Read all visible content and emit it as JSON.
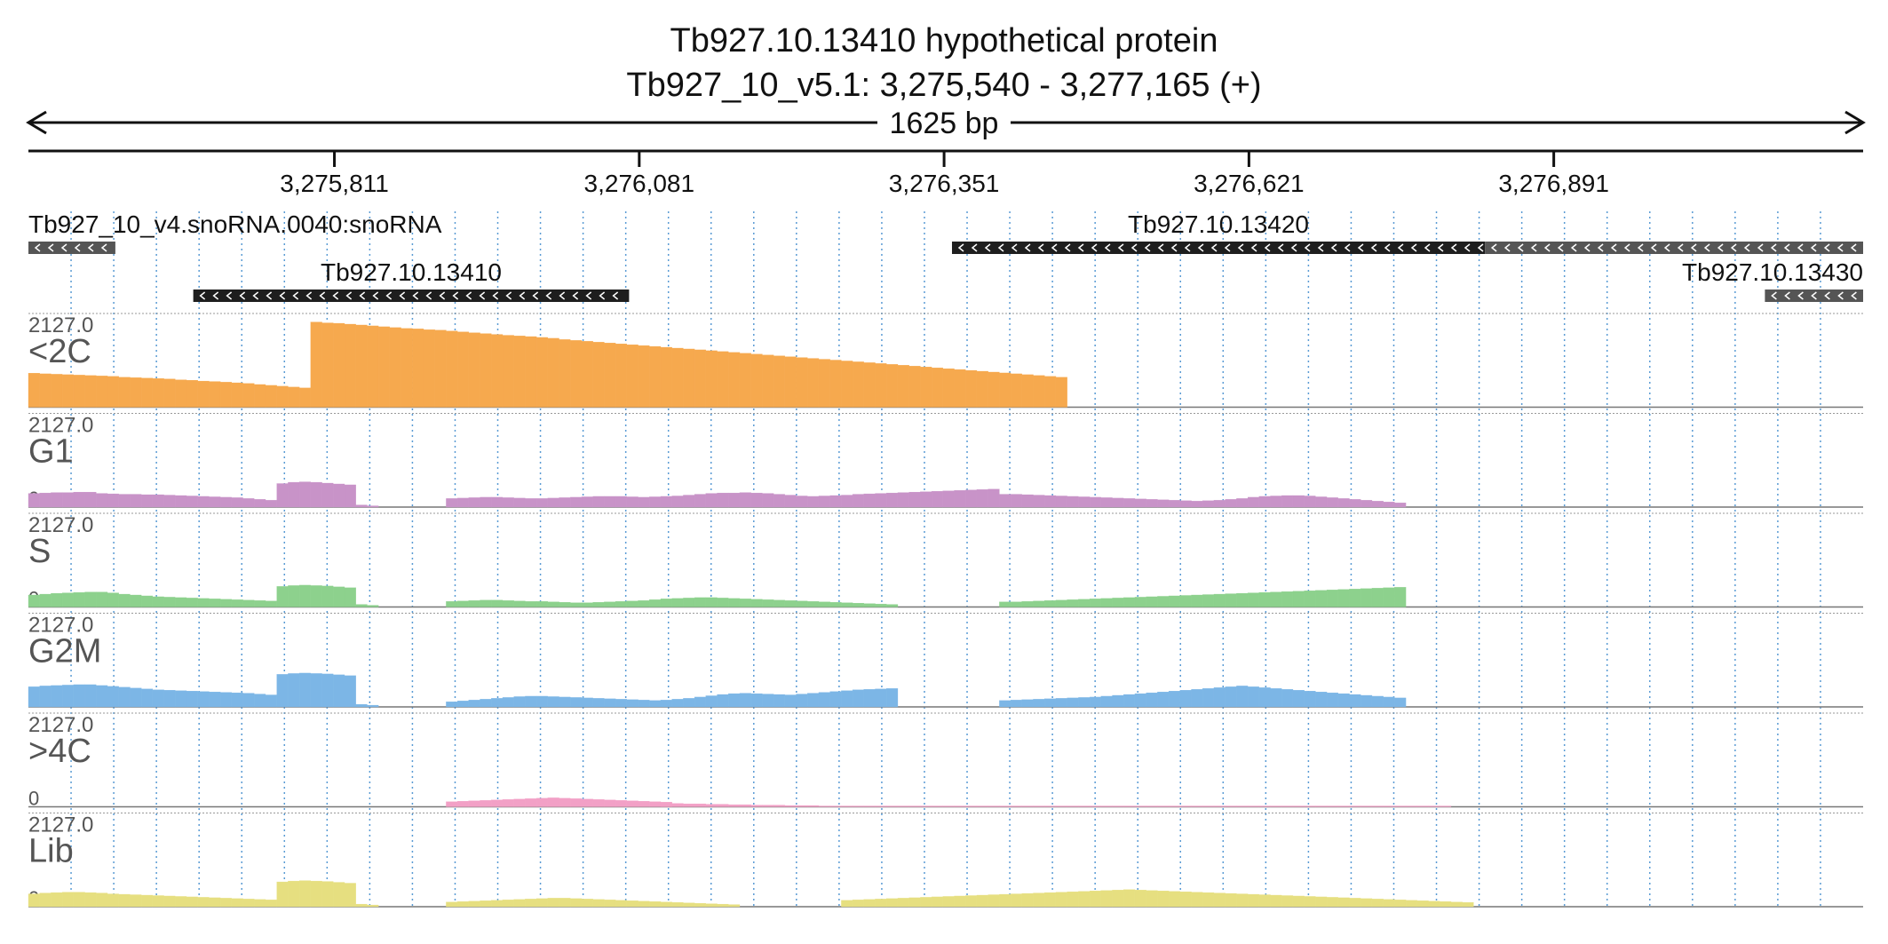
{
  "header": {
    "title": "Tb927.10.13410  hypothetical protein",
    "location": "Tb927_10_v5.1: 3,275,540 - 3,277,165 (+)",
    "span_label": "1625 bp"
  },
  "chart_data": {
    "type": "bar",
    "x_range": [
      3275540,
      3277165
    ],
    "ticks": [
      {
        "pos": 3275811,
        "label": "3,275,811"
      },
      {
        "pos": 3276081,
        "label": "3,276,081"
      },
      {
        "pos": 3276351,
        "label": "3,276,351"
      },
      {
        "pos": 3276621,
        "label": "3,276,621"
      },
      {
        "pos": 3276891,
        "label": "3,276,891"
      }
    ],
    "grid": true,
    "genes": [
      {
        "name": "Tb927_10_v4.snoRNA.0040:snoRNA",
        "start": 3275540,
        "end": 3275617,
        "strand": "-",
        "row": 0,
        "label_side": "left",
        "color": "#555555"
      },
      {
        "name": "Tb927.10.13420",
        "start": 3276358,
        "end": 3276830,
        "strand": "-",
        "row": 0,
        "label_side": "center",
        "color": "#1e1e1e"
      },
      {
        "name": "",
        "start": 3276830,
        "end": 3277165,
        "strand": "-",
        "row": 0,
        "label_side": "none",
        "color": "#555555"
      },
      {
        "name": "Tb927.10.13410",
        "start": 3275686,
        "end": 3276072,
        "strand": "-",
        "row": 1,
        "label_side": "center",
        "color": "#1e1e1e"
      },
      {
        "name": "Tb927.10.13430",
        "start": 3277078,
        "end": 3277165,
        "strand": "-",
        "row": 1,
        "label_side": "right",
        "color": "#555555"
      }
    ],
    "bin_size": 10,
    "tracks": [
      {
        "name": "<2C",
        "max": 2127.0,
        "min": 0,
        "color": "#f6a94e",
        "segments": [
          {
            "start": 3275540,
            "values": [
              795,
              780,
              770,
              760,
              750,
              740,
              730,
              720,
              700,
              690,
              680,
              670,
              660,
              640,
              630,
              610,
              600,
              585,
              570,
              555,
              530,
              510,
              490,
              470,
              450,
              1990,
              1970,
              1960,
              1940,
              1920,
              1900,
              1880,
              1860,
              1840,
              1830,
              1810,
              1800,
              1780,
              1760,
              1740,
              1720,
              1700,
              1680,
              1665,
              1650,
              1630,
              1610,
              1580,
              1560,
              1540,
              1520,
              1500,
              1480,
              1460,
              1440,
              1420,
              1400,
              1380,
              1360,
              1340,
              1320,
              1300,
              1280,
              1260,
              1240,
              1220,
              1200,
              1180,
              1160,
              1140,
              1120,
              1100,
              1080,
              1060,
              1040,
              1020,
              1000,
              980,
              960,
              940,
              920,
              900,
              880,
              860,
              840,
              820,
              800,
              780,
              760,
              740,
              720,
              700
            ]
          }
        ]
      },
      {
        "name": "G1",
        "max": 2127.0,
        "min": 0,
        "color": "#c893c8",
        "segments": [
          {
            "start": 3275540,
            "values": [
              320,
              330,
              340,
              340,
              350,
              350,
              320,
              310,
              300,
              300,
              290,
              290,
              280,
              270,
              260,
              250,
              240,
              230,
              220,
              200,
              180,
              160,
              550,
              580,
              590,
              580,
              560,
              540,
              520,
              50,
              30
            ]
          },
          {
            "start": 3275910,
            "values": [
              200,
              210,
              220,
              230,
              230,
              220,
              210,
              200,
              200,
              210,
              220,
              230,
              240,
              250,
              250,
              250,
              240,
              230,
              240,
              250,
              260,
              280,
              300,
              320,
              330,
              330,
              340,
              330,
              320,
              300,
              280,
              260,
              250,
              260,
              270,
              280,
              300,
              310,
              320,
              330,
              340,
              350,
              360,
              370,
              380,
              390,
              400,
              410,
              420
            ]
          },
          {
            "start": 3276400,
            "values": [
              300,
              300,
              290,
              280,
              270,
              260,
              250,
              240,
              230,
              220,
              210,
              200,
              190,
              180,
              170,
              160,
              150,
              140,
              150,
              160,
              180,
              200,
              230,
              250,
              260,
              270,
              270,
              260,
              240,
              220,
              200,
              180,
              160,
              140,
              120,
              100
            ]
          }
        ]
      },
      {
        "name": "S",
        "max": 2127.0,
        "min": 0,
        "color": "#8dd18d",
        "segments": [
          {
            "start": 3275540,
            "values": [
              280,
              300,
              320,
              330,
              340,
              350,
              350,
              330,
              300,
              280,
              260,
              240,
              230,
              220,
              210,
              200,
              190,
              180,
              170,
              160,
              150,
              140,
              480,
              500,
              510,
              500,
              490,
              470,
              450,
              60,
              40
            ]
          },
          {
            "start": 3275910,
            "values": [
              130,
              140,
              150,
              160,
              160,
              150,
              140,
              130,
              130,
              120,
              110,
              100,
              100,
              110,
              120,
              130,
              140,
              150,
              170,
              190,
              200,
              210,
              220,
              220,
              210,
              200,
              190,
              180,
              170,
              160,
              150,
              140,
              130,
              120,
              110,
              100,
              90,
              80,
              70,
              60
            ]
          },
          {
            "start": 3276400,
            "values": [
              120,
              120,
              130,
              140,
              150,
              160,
              170,
              180,
              190,
              200,
              210,
              220,
              230,
              240,
              250,
              260,
              270,
              280,
              290,
              300,
              310,
              320,
              330,
              340,
              350,
              360,
              370,
              380,
              390,
              400,
              410,
              420,
              430,
              440,
              450,
              460
            ]
          }
        ]
      },
      {
        "name": "G2M",
        "max": 2127.0,
        "min": 0,
        "color": "#7cb6e6",
        "segments": [
          {
            "start": 3275540,
            "values": [
              470,
              490,
              500,
              510,
              520,
              520,
              500,
              480,
              460,
              440,
              420,
              400,
              390,
              380,
              370,
              360,
              350,
              340,
              330,
              320,
              300,
              280,
              760,
              780,
              790,
              780,
              770,
              750,
              730,
              60,
              40
            ]
          },
          {
            "start": 3275910,
            "values": [
              120,
              140,
              160,
              180,
              200,
              220,
              240,
              250,
              250,
              240,
              230,
              220,
              210,
              200,
              190,
              180,
              170,
              160,
              150,
              160,
              180,
              200,
              230,
              260,
              290,
              310,
              320,
              310,
              300,
              290,
              280,
              300,
              320,
              340,
              360,
              380,
              400,
              410,
              420,
              430
            ]
          },
          {
            "start": 3276400,
            "values": [
              150,
              160,
              170,
              180,
              190,
              200,
              210,
              220,
              230,
              250,
              270,
              290,
              310,
              330,
              350,
              370,
              390,
              410,
              430,
              450,
              470,
              490,
              470,
              450,
              430,
              410,
              390,
              370,
              350,
              330,
              310,
              290,
              270,
              250,
              230,
              210
            ]
          }
        ]
      },
      {
        "name": ">4C",
        "max": 2127.0,
        "min": 0,
        "color": "#f2a0c6",
        "segments": [
          {
            "start": 3275910,
            "values": [
              120,
              130,
              140,
              150,
              160,
              170,
              180,
              190,
              200,
              210,
              200,
              190,
              180,
              170,
              160,
              150,
              140,
              130,
              120,
              110
            ]
          },
          {
            "start": 3276100,
            "values": [
              80,
              80,
              70,
              70,
              60,
              60,
              50,
              50,
              40,
              40,
              40,
              30,
              30,
              30,
              20,
              20,
              20,
              20,
              20,
              20,
              20,
              20,
              20,
              20,
              20,
              20,
              20,
              20,
              20,
              20,
              20,
              20,
              20,
              20,
              20,
              20,
              20,
              20,
              20,
              20,
              20,
              20,
              20,
              20,
              20,
              20,
              20,
              20,
              20,
              20,
              20,
              20,
              20,
              20,
              20,
              20,
              20,
              20,
              20,
              20,
              20,
              20,
              20,
              20,
              20,
              20,
              20,
              20,
              20,
              20
            ]
          }
        ]
      },
      {
        "name": "Lib",
        "max": 2127.0,
        "min": 0,
        "color": "#e6df80",
        "segments": [
          {
            "start": 3275540,
            "values": [
              300,
              320,
              330,
              340,
              340,
              330,
              320,
              300,
              290,
              280,
              270,
              260,
              250,
              240,
              230,
              220,
              210,
              200,
              190,
              180,
              170,
              160,
              580,
              600,
              610,
              600,
              590,
              570,
              550,
              60,
              40
            ]
          },
          {
            "start": 3275910,
            "values": [
              110,
              120,
              130,
              140,
              150,
              160,
              170,
              180,
              190,
              200,
              200,
              190,
              180,
              170,
              160,
              150,
              140,
              130,
              120,
              110,
              100,
              90,
              80,
              70,
              60,
              50
            ]
          },
          {
            "start": 3276260,
            "values": [
              150,
              160,
              170,
              180,
              190,
              200,
              210,
              220,
              230,
              240,
              250,
              260,
              270,
              280,
              290,
              300,
              310,
              320,
              330,
              340,
              350,
              360,
              370,
              380,
              390,
              400,
              390,
              380,
              370,
              360,
              350,
              340,
              330,
              320,
              310,
              300,
              290,
              280,
              270,
              260,
              250,
              240,
              230,
              220,
              210,
              200,
              190,
              180,
              170,
              160,
              150,
              140,
              130,
              120,
              110,
              100
            ]
          }
        ]
      }
    ]
  }
}
